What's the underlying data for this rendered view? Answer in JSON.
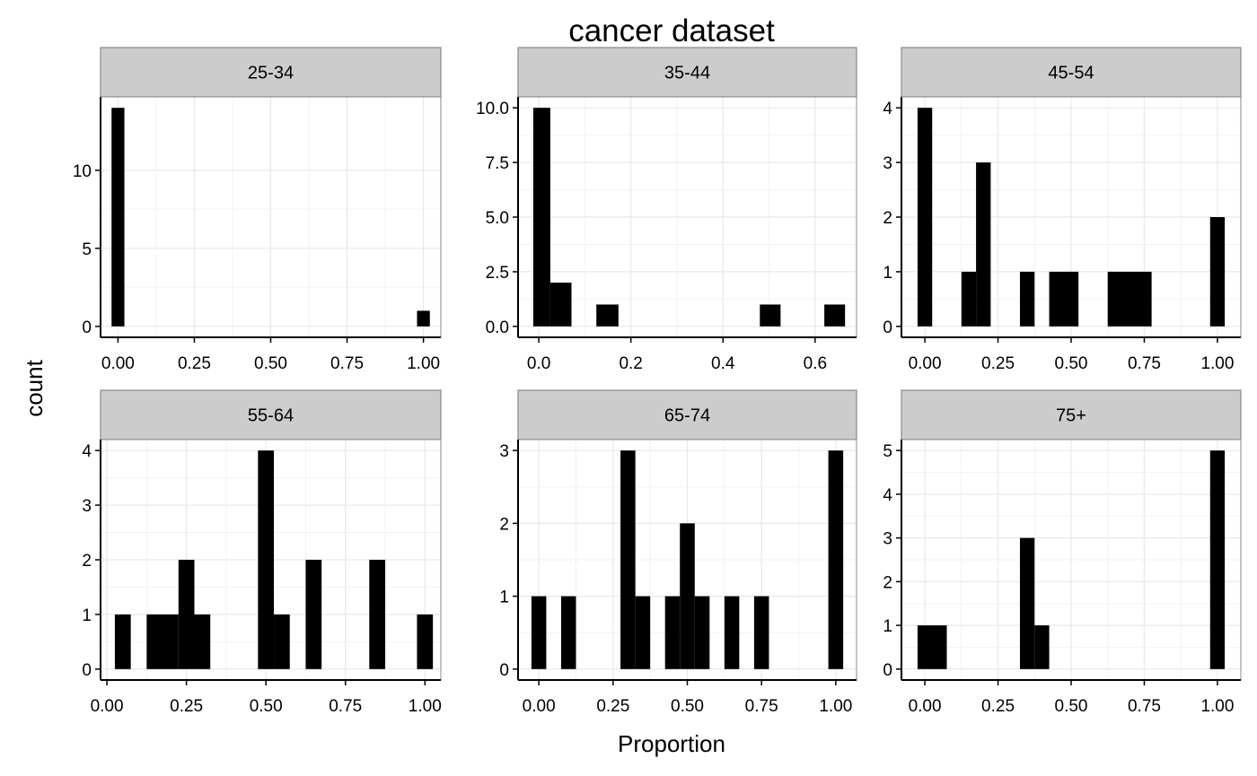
{
  "chart_data": {
    "type": "bar",
    "title": "cancer dataset",
    "xlabel": "Proportion",
    "ylabel": "count",
    "grid": true,
    "style": {
      "bar_color": "#000000",
      "strip_fill": "#cccccc",
      "strip_border": "#888888",
      "grid_color": "#e8e8e8",
      "panel_border": "#888888"
    },
    "panels": [
      {
        "strip": "25-34",
        "xlim": [
          -0.057,
          1.057
        ],
        "ylim": [
          -0.7,
          14.7
        ],
        "xticks": [
          {
            "v": 0,
            "label": "0.00"
          },
          {
            "v": 0.25,
            "label": "0.25"
          },
          {
            "v": 0.5,
            "label": "0.50"
          },
          {
            "v": 0.75,
            "label": "0.75"
          },
          {
            "v": 1,
            "label": "1.00"
          }
        ],
        "yticks": [
          {
            "v": 0,
            "label": "0"
          },
          {
            "v": 5,
            "label": "5"
          },
          {
            "v": 10,
            "label": "10"
          }
        ],
        "bars": [
          {
            "x0": -0.021,
            "x1": 0.021,
            "count": 14
          },
          {
            "x0": 0.979,
            "x1": 1.021,
            "count": 1
          }
        ]
      },
      {
        "strip": "35-44",
        "xlim": [
          -0.045,
          0.69
        ],
        "ylim": [
          -0.5,
          10.5
        ],
        "xticks": [
          {
            "v": 0,
            "label": "0.0"
          },
          {
            "v": 0.2,
            "label": "0.2"
          },
          {
            "v": 0.4,
            "label": "0.4"
          },
          {
            "v": 0.6,
            "label": "0.6"
          }
        ],
        "yticks": [
          {
            "v": 0,
            "label": "0.0"
          },
          {
            "v": 2.5,
            "label": "2.5"
          },
          {
            "v": 5,
            "label": "5.0"
          },
          {
            "v": 7.5,
            "label": "7.5"
          },
          {
            "v": 10,
            "label": "10.0"
          }
        ],
        "bars": [
          {
            "x0": -0.012,
            "x1": 0.025,
            "count": 10
          },
          {
            "x0": 0.025,
            "x1": 0.071,
            "count": 2
          },
          {
            "x0": 0.125,
            "x1": 0.173,
            "count": 1
          },
          {
            "x0": 0.48,
            "x1": 0.525,
            "count": 1
          },
          {
            "x0": 0.62,
            "x1": 0.665,
            "count": 1
          }
        ]
      },
      {
        "strip": "45-54",
        "xlim": [
          -0.08,
          1.08
        ],
        "ylim": [
          -0.2,
          4.2
        ],
        "xticks": [
          {
            "v": 0,
            "label": "0.00"
          },
          {
            "v": 0.25,
            "label": "0.25"
          },
          {
            "v": 0.5,
            "label": "0.50"
          },
          {
            "v": 0.75,
            "label": "0.75"
          },
          {
            "v": 1,
            "label": "1.00"
          }
        ],
        "yticks": [
          {
            "v": 0,
            "label": "0"
          },
          {
            "v": 1,
            "label": "1"
          },
          {
            "v": 2,
            "label": "2"
          },
          {
            "v": 3,
            "label": "3"
          },
          {
            "v": 4,
            "label": "4"
          }
        ],
        "bars": [
          {
            "x0": -0.025,
            "x1": 0.025,
            "count": 4
          },
          {
            "x0": 0.125,
            "x1": 0.175,
            "count": 1
          },
          {
            "x0": 0.175,
            "x1": 0.225,
            "count": 3
          },
          {
            "x0": 0.325,
            "x1": 0.375,
            "count": 1
          },
          {
            "x0": 0.425,
            "x1": 0.525,
            "count": 1
          },
          {
            "x0": 0.625,
            "x1": 0.775,
            "count": 1
          },
          {
            "x0": 0.975,
            "x1": 1.025,
            "count": 2
          }
        ]
      },
      {
        "strip": "55-64",
        "xlim": [
          -0.02,
          1.05
        ],
        "ylim": [
          -0.2,
          4.2
        ],
        "xticks": [
          {
            "v": 0,
            "label": "0.00"
          },
          {
            "v": 0.25,
            "label": "0.25"
          },
          {
            "v": 0.5,
            "label": "0.50"
          },
          {
            "v": 0.75,
            "label": "0.75"
          },
          {
            "v": 1,
            "label": "1.00"
          }
        ],
        "yticks": [
          {
            "v": 0,
            "label": "0"
          },
          {
            "v": 1,
            "label": "1"
          },
          {
            "v": 2,
            "label": "2"
          },
          {
            "v": 3,
            "label": "3"
          },
          {
            "v": 4,
            "label": "4"
          }
        ],
        "bars": [
          {
            "x0": 0.025,
            "x1": 0.075,
            "count": 1
          },
          {
            "x0": 0.125,
            "x1": 0.225,
            "count": 1
          },
          {
            "x0": 0.225,
            "x1": 0.275,
            "count": 2
          },
          {
            "x0": 0.275,
            "x1": 0.325,
            "count": 1
          },
          {
            "x0": 0.475,
            "x1": 0.525,
            "count": 4
          },
          {
            "x0": 0.525,
            "x1": 0.575,
            "count": 1
          },
          {
            "x0": 0.625,
            "x1": 0.675,
            "count": 2
          },
          {
            "x0": 0.825,
            "x1": 0.875,
            "count": 2
          },
          {
            "x0": 0.975,
            "x1": 1.025,
            "count": 1
          }
        ]
      },
      {
        "strip": "65-74",
        "xlim": [
          -0.07,
          1.07
        ],
        "ylim": [
          -0.15,
          3.15
        ],
        "xticks": [
          {
            "v": 0,
            "label": "0.00"
          },
          {
            "v": 0.25,
            "label": "0.25"
          },
          {
            "v": 0.5,
            "label": "0.50"
          },
          {
            "v": 0.75,
            "label": "0.75"
          },
          {
            "v": 1,
            "label": "1.00"
          }
        ],
        "yticks": [
          {
            "v": 0,
            "label": "0"
          },
          {
            "v": 1,
            "label": "1"
          },
          {
            "v": 2,
            "label": "2"
          },
          {
            "v": 3,
            "label": "3"
          }
        ],
        "bars": [
          {
            "x0": -0.025,
            "x1": 0.025,
            "count": 1
          },
          {
            "x0": 0.075,
            "x1": 0.125,
            "count": 1
          },
          {
            "x0": 0.275,
            "x1": 0.325,
            "count": 3
          },
          {
            "x0": 0.325,
            "x1": 0.375,
            "count": 1
          },
          {
            "x0": 0.425,
            "x1": 0.475,
            "count": 1
          },
          {
            "x0": 0.475,
            "x1": 0.525,
            "count": 2
          },
          {
            "x0": 0.525,
            "x1": 0.575,
            "count": 1
          },
          {
            "x0": 0.625,
            "x1": 0.675,
            "count": 1
          },
          {
            "x0": 0.725,
            "x1": 0.775,
            "count": 1
          },
          {
            "x0": 0.975,
            "x1": 1.025,
            "count": 3
          }
        ]
      },
      {
        "strip": "75+",
        "xlim": [
          -0.08,
          1.08
        ],
        "ylim": [
          -0.25,
          5.25
        ],
        "xticks": [
          {
            "v": 0,
            "label": "0.00"
          },
          {
            "v": 0.25,
            "label": "0.25"
          },
          {
            "v": 0.5,
            "label": "0.50"
          },
          {
            "v": 0.75,
            "label": "0.75"
          },
          {
            "v": 1,
            "label": "1.00"
          }
        ],
        "yticks": [
          {
            "v": 0,
            "label": "0"
          },
          {
            "v": 1,
            "label": "1"
          },
          {
            "v": 2,
            "label": "2"
          },
          {
            "v": 3,
            "label": "3"
          },
          {
            "v": 4,
            "label": "4"
          },
          {
            "v": 5,
            "label": "5"
          }
        ],
        "bars": [
          {
            "x0": -0.025,
            "x1": 0.075,
            "count": 1
          },
          {
            "x0": 0.325,
            "x1": 0.375,
            "count": 3
          },
          {
            "x0": 0.375,
            "x1": 0.425,
            "count": 1
          },
          {
            "x0": 0.975,
            "x1": 1.025,
            "count": 5
          }
        ]
      }
    ]
  }
}
